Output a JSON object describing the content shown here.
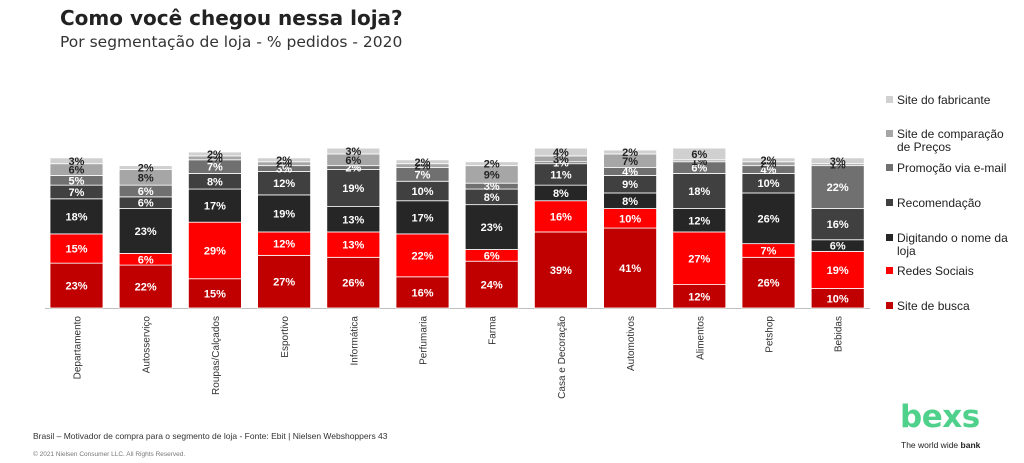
{
  "header": {
    "title": "Como você chegou nessa loja?",
    "subtitle": "Por segmentação de loja - % pedidos - 2020"
  },
  "footer": {
    "source": "Brasil – Motivador de compra para o segmento de loja - Fonte: Ebit | Nielsen Webshoppers 43",
    "copyright": "© 2021 Nielsen Consumer LLC. All Rights Reserved."
  },
  "brand": {
    "logo": "bexs",
    "tagline_prefix": "The world wide ",
    "tagline_bold": "bank",
    "color": "#4fd18b"
  },
  "chart_data": {
    "type": "bar",
    "stacked": true,
    "title": "Como você chegou nessa loja?",
    "subtitle": "Por segmentação de loja - % pedidos - 2020",
    "legend_position": "right",
    "categories": [
      "Departamento",
      "Autosserviço",
      "Roupas/Calçados",
      "Esportivo",
      "Informática",
      "Perfumaria",
      "Farma",
      "Casa e Decoração",
      "Automotivos",
      "Alimentos",
      "Petshop",
      "Bebidas"
    ],
    "series": [
      {
        "name": "Site de busca",
        "color": "#c00000",
        "values": [
          23,
          22,
          15,
          27,
          26,
          16,
          24,
          39,
          41,
          12,
          26,
          10
        ]
      },
      {
        "name": "Redes Sociais",
        "color": "#ff0000",
        "values": [
          15,
          6,
          29,
          12,
          13,
          22,
          6,
          16,
          10,
          27,
          7,
          19
        ]
      },
      {
        "name": "Digitando o nome da loja",
        "color": "#262626",
        "values": [
          18,
          23,
          17,
          19,
          13,
          17,
          23,
          8,
          8,
          12,
          26,
          6
        ]
      },
      {
        "name": "Recomendação",
        "color": "#404040",
        "values": [
          7,
          6,
          8,
          12,
          19,
          10,
          8,
          11,
          9,
          18,
          10,
          16
        ]
      },
      {
        "name": "Promoção via e-mail",
        "color": "#707070",
        "values": [
          5,
          6,
          7,
          3,
          2,
          7,
          3,
          1,
          4,
          6,
          4,
          22
        ]
      },
      {
        "name": "Site de comparação de Preços",
        "color": "#a6a6a6",
        "values": [
          6,
          8,
          2,
          2,
          6,
          2,
          9,
          3,
          7,
          1,
          2,
          1
        ]
      },
      {
        "name": "Site do fabricante",
        "color": "#d0d0d0",
        "values": [
          3,
          2,
          2,
          2,
          3,
          2,
          2,
          4,
          2,
          6,
          2,
          3
        ]
      }
    ],
    "legend_order": [
      "Site do fabricante",
      "Site de comparação de Preços",
      "Promoção via e-mail",
      "Recomendação",
      "Digitando o nome da loja",
      "Redes Sociais",
      "Site de busca"
    ],
    "value_suffix": "%"
  }
}
